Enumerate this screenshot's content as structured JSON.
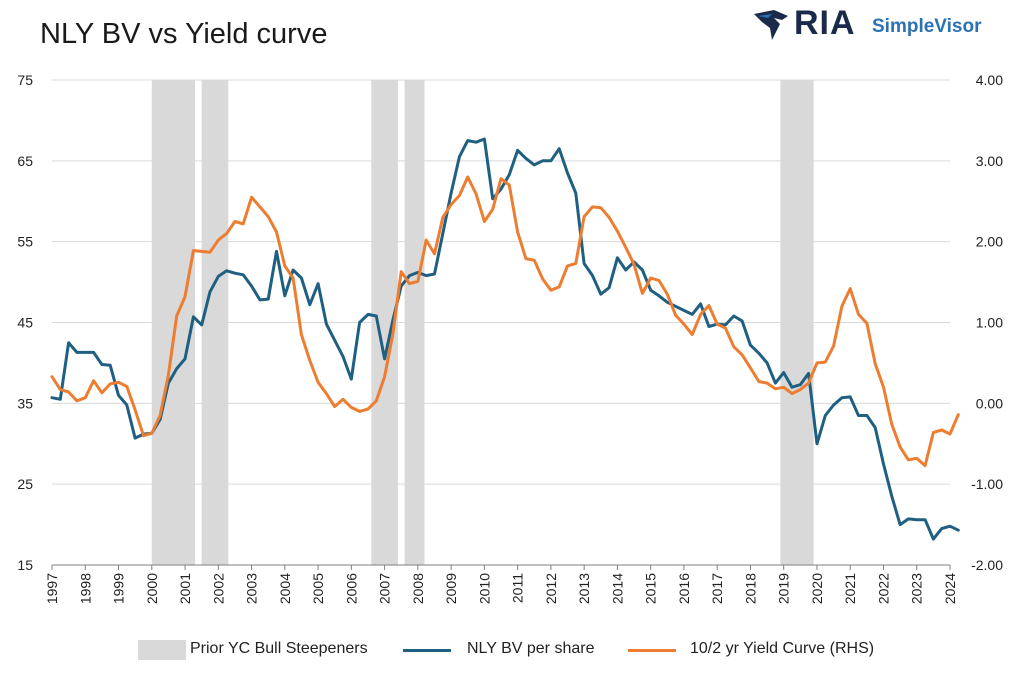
{
  "title": "NLY BV vs Yield curve",
  "logo": {
    "brand": "RIA",
    "product": "SimpleVisor"
  },
  "colors": {
    "nly": "#1f5f82",
    "curve": "#ed7d31",
    "shade": "#d9d9d9",
    "grid": "#d9d9d9"
  },
  "chart_data": {
    "type": "line",
    "title": "NLY BV vs Yield curve",
    "x_domain": [
      1997,
      2024
    ],
    "x_ticks": [
      "1997",
      "1998",
      "1999",
      "2000",
      "2001",
      "2002",
      "2003",
      "2004",
      "2005",
      "2006",
      "2007",
      "2008",
      "2009",
      "2010",
      "2011",
      "2012",
      "2013",
      "2014",
      "2015",
      "2016",
      "2017",
      "2018",
      "2019",
      "2020",
      "2021",
      "2022",
      "2023",
      "2024"
    ],
    "y_left": {
      "min": 15,
      "max": 75,
      "ticks": [
        "75",
        "65",
        "55",
        "45",
        "35",
        "25",
        "15"
      ]
    },
    "y_right": {
      "min": -2.0,
      "max": 4.0,
      "ticks": [
        "4.00",
        "3.00",
        "2.00",
        "1.00",
        "0.00",
        "-1.00",
        "-2.00"
      ]
    },
    "grid": "horizontal",
    "legend_position": "bottom",
    "shaded_periods": [
      [
        2000.0,
        2001.3
      ],
      [
        2001.5,
        2002.3
      ],
      [
        2006.6,
        2007.4
      ],
      [
        2007.6,
        2008.2
      ],
      [
        2018.9,
        2019.9
      ]
    ],
    "series": [
      {
        "name": "NLY BV per share",
        "axis": "left",
        "points": [
          [
            1997.0,
            35.7
          ],
          [
            1997.25,
            35.5
          ],
          [
            1997.5,
            42.5
          ],
          [
            1997.75,
            41.3
          ],
          [
            1998.0,
            41.3
          ],
          [
            1998.25,
            41.3
          ],
          [
            1998.5,
            39.8
          ],
          [
            1998.75,
            39.7
          ],
          [
            1999.0,
            36.0
          ],
          [
            1999.25,
            34.8
          ],
          [
            1999.5,
            30.7
          ],
          [
            1999.75,
            31.2
          ],
          [
            2000.0,
            31.3
          ],
          [
            2000.25,
            33.0
          ],
          [
            2000.5,
            37.5
          ],
          [
            2000.75,
            39.3
          ],
          [
            2001.0,
            40.5
          ],
          [
            2001.25,
            45.7
          ],
          [
            2001.5,
            44.7
          ],
          [
            2001.75,
            48.8
          ],
          [
            2002.0,
            50.7
          ],
          [
            2002.25,
            51.4
          ],
          [
            2002.5,
            51.1
          ],
          [
            2002.75,
            50.9
          ],
          [
            2003.0,
            49.5
          ],
          [
            2003.25,
            47.8
          ],
          [
            2003.5,
            47.9
          ],
          [
            2003.75,
            53.8
          ],
          [
            2004.0,
            48.3
          ],
          [
            2004.25,
            51.5
          ],
          [
            2004.5,
            50.5
          ],
          [
            2004.75,
            47.2
          ],
          [
            2005.0,
            49.8
          ],
          [
            2005.25,
            44.8
          ],
          [
            2005.5,
            42.8
          ],
          [
            2005.75,
            40.8
          ],
          [
            2006.0,
            38.0
          ],
          [
            2006.25,
            45.0
          ],
          [
            2006.5,
            46.0
          ],
          [
            2006.75,
            45.8
          ],
          [
            2007.0,
            40.5
          ],
          [
            2007.25,
            45.3
          ],
          [
            2007.5,
            49.5
          ],
          [
            2007.75,
            50.8
          ],
          [
            2008.0,
            51.2
          ],
          [
            2008.25,
            50.8
          ],
          [
            2008.5,
            51.0
          ],
          [
            2008.75,
            56.0
          ],
          [
            2009.0,
            61.0
          ],
          [
            2009.25,
            65.5
          ],
          [
            2009.5,
            67.5
          ],
          [
            2009.75,
            67.3
          ],
          [
            2010.0,
            67.7
          ],
          [
            2010.25,
            60.3
          ],
          [
            2010.5,
            61.5
          ],
          [
            2010.75,
            63.3
          ],
          [
            2011.0,
            66.3
          ],
          [
            2011.25,
            65.3
          ],
          [
            2011.5,
            64.5
          ],
          [
            2011.75,
            65.0
          ],
          [
            2012.0,
            65.0
          ],
          [
            2012.25,
            66.5
          ],
          [
            2012.5,
            63.5
          ],
          [
            2012.75,
            61.0
          ],
          [
            2013.0,
            52.3
          ],
          [
            2013.25,
            50.8
          ],
          [
            2013.5,
            48.5
          ],
          [
            2013.75,
            49.3
          ],
          [
            2014.0,
            53.0
          ],
          [
            2014.25,
            51.5
          ],
          [
            2014.5,
            52.5
          ],
          [
            2014.75,
            51.5
          ],
          [
            2015.0,
            49.0
          ],
          [
            2015.25,
            48.3
          ],
          [
            2015.5,
            47.5
          ],
          [
            2015.75,
            47.0
          ],
          [
            2016.0,
            46.5
          ],
          [
            2016.25,
            46.0
          ],
          [
            2016.5,
            47.3
          ],
          [
            2016.75,
            44.5
          ],
          [
            2017.0,
            44.8
          ],
          [
            2017.25,
            44.7
          ],
          [
            2017.5,
            45.8
          ],
          [
            2017.75,
            45.2
          ],
          [
            2018.0,
            42.2
          ],
          [
            2018.25,
            41.2
          ],
          [
            2018.5,
            40.0
          ],
          [
            2018.75,
            37.5
          ],
          [
            2019.0,
            38.8
          ],
          [
            2019.25,
            37.0
          ],
          [
            2019.5,
            37.3
          ],
          [
            2019.75,
            38.7
          ],
          [
            2020.0,
            30.0
          ],
          [
            2020.25,
            33.5
          ],
          [
            2020.5,
            34.8
          ],
          [
            2020.75,
            35.7
          ],
          [
            2021.0,
            35.8
          ],
          [
            2021.25,
            33.5
          ],
          [
            2021.5,
            33.5
          ],
          [
            2021.75,
            32.0
          ],
          [
            2022.0,
            27.5
          ],
          [
            2022.25,
            23.5
          ],
          [
            2022.5,
            20.0
          ],
          [
            2022.75,
            20.7
          ],
          [
            2023.0,
            20.6
          ],
          [
            2023.25,
            20.6
          ],
          [
            2023.5,
            18.2
          ],
          [
            2023.75,
            19.5
          ],
          [
            2024.0,
            19.8
          ],
          [
            2024.25,
            19.3
          ]
        ]
      },
      {
        "name": "10/2 yr Yield Curve (RHS)",
        "axis": "right",
        "points": [
          [
            1997.0,
            0.33
          ],
          [
            1997.25,
            0.17
          ],
          [
            1997.5,
            0.14
          ],
          [
            1997.75,
            0.03
          ],
          [
            1998.0,
            0.07
          ],
          [
            1998.25,
            0.28
          ],
          [
            1998.5,
            0.13
          ],
          [
            1998.75,
            0.24
          ],
          [
            1999.0,
            0.26
          ],
          [
            1999.25,
            0.21
          ],
          [
            1999.5,
            -0.08
          ],
          [
            1999.75,
            -0.4
          ],
          [
            2000.0,
            -0.37
          ],
          [
            2000.25,
            -0.15
          ],
          [
            2000.5,
            0.35
          ],
          [
            2000.75,
            1.08
          ],
          [
            2001.0,
            1.32
          ],
          [
            2001.25,
            1.89
          ],
          [
            2001.5,
            1.88
          ],
          [
            2001.75,
            1.87
          ],
          [
            2002.0,
            2.02
          ],
          [
            2002.25,
            2.1
          ],
          [
            2002.5,
            2.25
          ],
          [
            2002.75,
            2.22
          ],
          [
            2003.0,
            2.55
          ],
          [
            2003.25,
            2.43
          ],
          [
            2003.5,
            2.31
          ],
          [
            2003.75,
            2.12
          ],
          [
            2004.0,
            1.7
          ],
          [
            2004.25,
            1.55
          ],
          [
            2004.5,
            0.85
          ],
          [
            2004.75,
            0.53
          ],
          [
            2005.0,
            0.26
          ],
          [
            2005.25,
            0.12
          ],
          [
            2005.5,
            -0.04
          ],
          [
            2005.75,
            0.05
          ],
          [
            2006.0,
            -0.05
          ],
          [
            2006.25,
            -0.1
          ],
          [
            2006.5,
            -0.07
          ],
          [
            2006.75,
            0.03
          ],
          [
            2007.0,
            0.33
          ],
          [
            2007.25,
            0.86
          ],
          [
            2007.5,
            1.63
          ],
          [
            2007.75,
            1.48
          ],
          [
            2008.0,
            1.51
          ],
          [
            2008.25,
            2.02
          ],
          [
            2008.5,
            1.85
          ],
          [
            2008.75,
            2.3
          ],
          [
            2009.0,
            2.46
          ],
          [
            2009.25,
            2.57
          ],
          [
            2009.5,
            2.8
          ],
          [
            2009.75,
            2.59
          ],
          [
            2010.0,
            2.25
          ],
          [
            2010.25,
            2.4
          ],
          [
            2010.5,
            2.78
          ],
          [
            2010.75,
            2.7
          ],
          [
            2011.0,
            2.12
          ],
          [
            2011.25,
            1.79
          ],
          [
            2011.5,
            1.77
          ],
          [
            2011.75,
            1.54
          ],
          [
            2012.0,
            1.4
          ],
          [
            2012.25,
            1.44
          ],
          [
            2012.5,
            1.7
          ],
          [
            2012.75,
            1.73
          ],
          [
            2013.0,
            2.31
          ],
          [
            2013.25,
            2.43
          ],
          [
            2013.5,
            2.42
          ],
          [
            2013.75,
            2.3
          ],
          [
            2014.0,
            2.13
          ],
          [
            2014.25,
            1.93
          ],
          [
            2014.5,
            1.72
          ],
          [
            2014.75,
            1.36
          ],
          [
            2015.0,
            1.55
          ],
          [
            2015.25,
            1.52
          ],
          [
            2015.5,
            1.35
          ],
          [
            2015.75,
            1.09
          ],
          [
            2016.0,
            0.98
          ],
          [
            2016.25,
            0.85
          ],
          [
            2016.5,
            1.1
          ],
          [
            2016.75,
            1.21
          ],
          [
            2017.0,
            0.98
          ],
          [
            2017.25,
            0.93
          ],
          [
            2017.5,
            0.7
          ],
          [
            2017.75,
            0.6
          ],
          [
            2018.0,
            0.44
          ],
          [
            2018.25,
            0.27
          ],
          [
            2018.5,
            0.25
          ],
          [
            2018.75,
            0.18
          ],
          [
            2019.0,
            0.2
          ],
          [
            2019.25,
            0.12
          ],
          [
            2019.5,
            0.17
          ],
          [
            2019.75,
            0.25
          ],
          [
            2020.0,
            0.5
          ],
          [
            2020.25,
            0.51
          ],
          [
            2020.5,
            0.71
          ],
          [
            2020.75,
            1.2
          ],
          [
            2021.0,
            1.42
          ],
          [
            2021.25,
            1.1
          ],
          [
            2021.5,
            0.99
          ],
          [
            2021.75,
            0.49
          ],
          [
            2022.0,
            0.2
          ],
          [
            2022.25,
            -0.26
          ],
          [
            2022.5,
            -0.54
          ],
          [
            2022.75,
            -0.7
          ],
          [
            2023.0,
            -0.68
          ],
          [
            2023.25,
            -0.77
          ],
          [
            2023.5,
            -0.36
          ],
          [
            2023.75,
            -0.33
          ],
          [
            2024.0,
            -0.38
          ],
          [
            2024.25,
            -0.14
          ]
        ]
      }
    ]
  },
  "legend": {
    "items": [
      {
        "label": "Prior YC Bull Steepeners",
        "kind": "box"
      },
      {
        "label": "NLY BV per share",
        "kind": "line"
      },
      {
        "label": "10/2 yr Yield Curve (RHS)",
        "kind": "line"
      }
    ]
  }
}
